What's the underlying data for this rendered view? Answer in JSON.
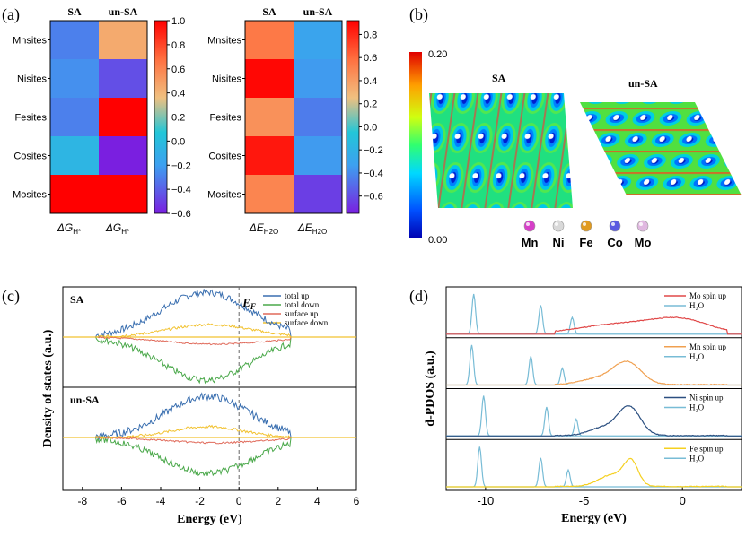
{
  "figure": {
    "panel_labels": [
      "(a)",
      "(b)",
      "(c)",
      "(d)"
    ]
  },
  "chart_data": [
    {
      "panel": "(a)-left",
      "type": "heatmap",
      "columns": [
        "SA",
        "un-SA"
      ],
      "rows": [
        "Mnsites",
        "Nisites",
        "Fesites",
        "Cosites",
        "Mosites"
      ],
      "xlabels": [
        "ΔG",
        "ΔG"
      ],
      "x_sub": "H*",
      "values": [
        [
          -0.3,
          0.45
        ],
        [
          -0.25,
          -0.45
        ],
        [
          -0.3,
          1.0
        ],
        [
          -0.05,
          -0.6
        ],
        [
          1.0,
          1.0
        ]
      ],
      "colorbar": {
        "min": -0.6,
        "max": 1.0,
        "ticks": [
          "1.0",
          "0.8",
          "0.6",
          "0.4",
          "0.2",
          "0.0",
          "−0.2",
          "−0.4",
          "−0.6"
        ]
      }
    },
    {
      "panel": "(a)-right",
      "type": "heatmap",
      "columns": [
        "SA",
        "un-SA"
      ],
      "rows": [
        "Mnsites",
        "Nisites",
        "Fesites",
        "Cosites",
        "Mosites"
      ],
      "xlabels": [
        "ΔE",
        "ΔE"
      ],
      "x_sub": "H2O",
      "values": [
        [
          0.55,
          -0.3
        ],
        [
          0.9,
          -0.35
        ],
        [
          0.45,
          -0.45
        ],
        [
          0.85,
          -0.35
        ],
        [
          0.5,
          -0.65
        ]
      ],
      "colorbar": {
        "min": -0.75,
        "max": 0.92,
        "ticks": [
          "0.8",
          "0.6",
          "0.4",
          "0.2",
          "0.0",
          "−0.2",
          "−0.4",
          "−0.6"
        ]
      }
    },
    {
      "panel": "(b)",
      "type": "heatmap",
      "titles": [
        "SA",
        "un-SA"
      ],
      "colorbar": {
        "min": "0.00",
        "max": "0.20"
      },
      "legend": [
        "Mn",
        "Ni",
        "Fe",
        "Co",
        "Mo"
      ],
      "legend_colors": [
        "#d63fc8",
        "#d9d9d9",
        "#e09a20",
        "#5a5ae0",
        "#e0b8e0"
      ]
    },
    {
      "panel": "(c)",
      "type": "line",
      "subplots": [
        "SA",
        "un-SA"
      ],
      "xlabel": "Energy (eV)",
      "ylabel": "Density of states (a.u.)",
      "xlim": [
        -9,
        6
      ],
      "xticks": [
        "-8",
        "-6",
        "-4",
        "-2",
        "0",
        "2",
        "4",
        "6"
      ],
      "fermi_label": "E",
      "fermi_sub": "F",
      "series": [
        {
          "name": "total up",
          "color": "#3a6fb0"
        },
        {
          "name": "total down",
          "color": "#4aa84a"
        },
        {
          "name": "surface up",
          "color": "#e06a5a"
        },
        {
          "name": "surface down",
          "color": "#f2c230"
        }
      ]
    },
    {
      "panel": "(d)",
      "type": "line",
      "ylabel": "d-PDOS (a.u.)",
      "xlabel": "Energy (eV)",
      "xlim": [
        -12,
        3
      ],
      "xticks": [
        "-10",
        "-5",
        "0"
      ],
      "h2o_peaks": [
        [
          -10.6,
          -7.2,
          -5.6
        ],
        [
          -10.7,
          -7.7,
          -6.1
        ],
        [
          -10.1,
          -6.9,
          -5.4
        ],
        [
          -10.3,
          -7.2,
          -5.8
        ]
      ],
      "subplots": [
        {
          "legend": "Mo spin up",
          "color": "#e04848",
          "h2o": "H₂O"
        },
        {
          "legend": "Mn spin up",
          "color": "#f0a050",
          "h2o": "H₂O"
        },
        {
          "legend": "Ni spin up",
          "color": "#2b4f80",
          "h2o": "H₂O"
        },
        {
          "legend": "Fe spin up",
          "color": "#f5d020",
          "h2o": "H₂O"
        }
      ],
      "h2o_color": "#78bcd6"
    }
  ]
}
